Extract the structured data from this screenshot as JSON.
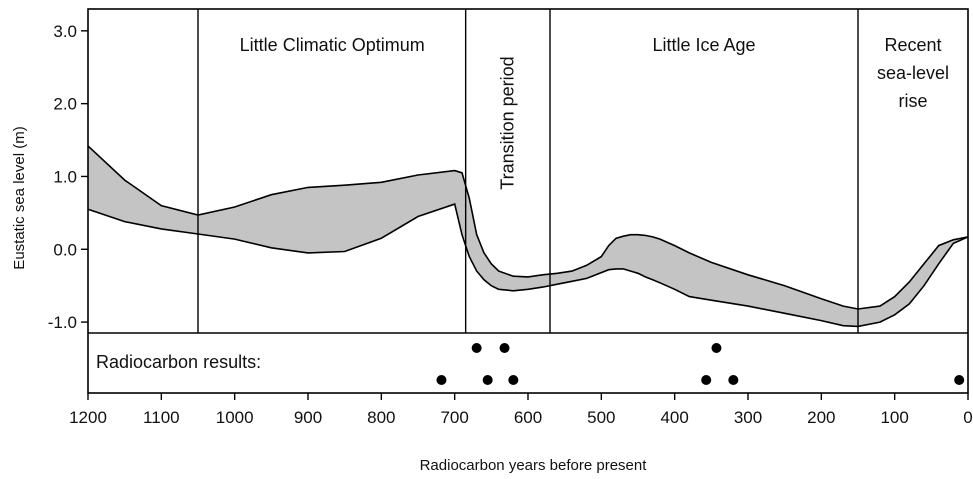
{
  "chart_data": {
    "type": "area",
    "xlabel": "Radiocarbon years before present",
    "ylabel": "Eustatic sea level (m)",
    "xlim": [
      1200,
      0
    ],
    "ylim": [
      -1.15,
      3.3
    ],
    "x_ticks": [
      1200,
      1100,
      1000,
      900,
      800,
      700,
      600,
      500,
      400,
      300,
      200,
      100,
      0
    ],
    "y_ticks": [
      -1.0,
      0.0,
      1.0,
      2.0,
      3.0
    ],
    "y_tick_labels": [
      "-1.0",
      "0.0",
      "1.0",
      "2.0",
      "3.0"
    ],
    "grid": false,
    "band": {
      "x": [
        1200,
        1150,
        1100,
        1050,
        1000,
        950,
        900,
        850,
        800,
        750,
        700,
        690,
        680,
        670,
        660,
        650,
        640,
        620,
        600,
        580,
        560,
        540,
        520,
        500,
        490,
        480,
        470,
        460,
        450,
        440,
        430,
        420,
        400,
        380,
        350,
        300,
        250,
        200,
        170,
        150,
        120,
        100,
        80,
        60,
        40,
        20,
        0
      ],
      "upper": [
        1.42,
        0.95,
        0.6,
        0.47,
        0.58,
        0.75,
        0.85,
        0.88,
        0.92,
        1.02,
        1.08,
        1.05,
        0.7,
        0.2,
        -0.05,
        -0.2,
        -0.3,
        -0.37,
        -0.38,
        -0.35,
        -0.33,
        -0.3,
        -0.22,
        -0.1,
        0.05,
        0.15,
        0.18,
        0.2,
        0.2,
        0.19,
        0.17,
        0.14,
        0.05,
        -0.05,
        -0.18,
        -0.35,
        -0.5,
        -0.68,
        -0.78,
        -0.82,
        -0.78,
        -0.65,
        -0.45,
        -0.2,
        0.05,
        0.13,
        0.17
      ],
      "lower": [
        0.55,
        0.38,
        0.28,
        0.21,
        0.14,
        0.02,
        -0.05,
        -0.03,
        0.15,
        0.45,
        0.62,
        0.2,
        -0.1,
        -0.3,
        -0.42,
        -0.5,
        -0.55,
        -0.57,
        -0.55,
        -0.52,
        -0.48,
        -0.44,
        -0.4,
        -0.32,
        -0.28,
        -0.27,
        -0.27,
        -0.3,
        -0.33,
        -0.38,
        -0.42,
        -0.46,
        -0.55,
        -0.65,
        -0.7,
        -0.78,
        -0.88,
        -0.98,
        -1.05,
        -1.06,
        -1.0,
        -0.9,
        -0.75,
        -0.5,
        -0.2,
        0.08,
        0.17
      ]
    },
    "period_boundaries": [
      1050,
      685,
      570,
      150
    ],
    "periods": [
      {
        "label": [
          "Little Climatic Optimum"
        ],
        "x": 867,
        "vertical": false
      },
      {
        "label": [
          "Transition period"
        ],
        "x": 628,
        "vertical": true
      },
      {
        "label": [
          "Little Ice Age"
        ],
        "x": 360,
        "vertical": false
      },
      {
        "label": [
          "Recent",
          "sea-level",
          "rise"
        ],
        "x": 75,
        "vertical": false
      }
    ],
    "radiocarbon_label": "Radiocarbon results:",
    "radiocarbon_results": {
      "upper_row": [
        670,
        632,
        343
      ],
      "lower_row": [
        718,
        655,
        620,
        357,
        320,
        12
      ]
    },
    "band_color": "#c4c4c4",
    "line_color": "#000000"
  }
}
